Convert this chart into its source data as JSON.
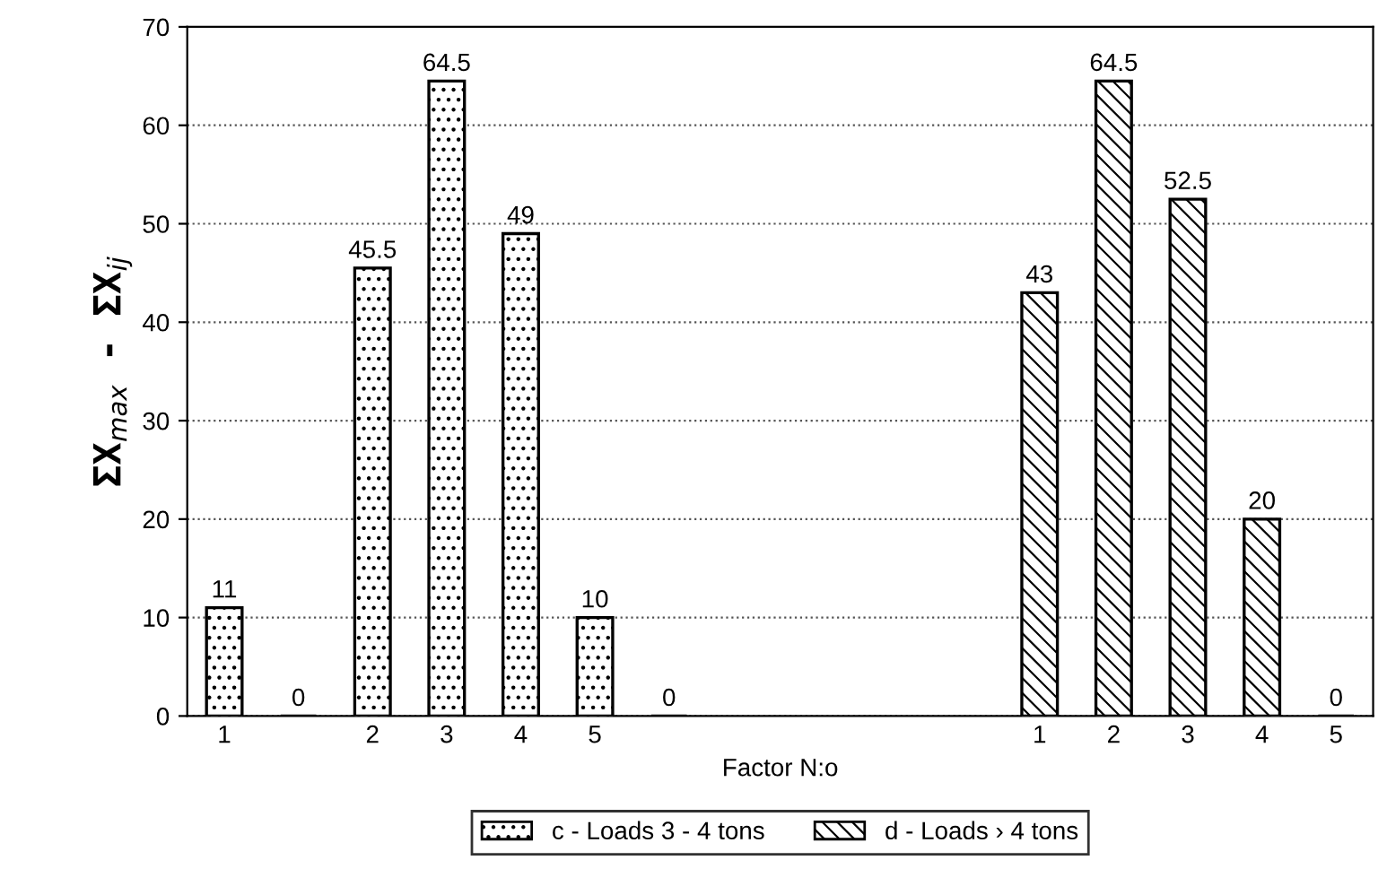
{
  "chart_data": {
    "type": "bar",
    "xlabel": "Factor N:o",
    "ylabel": "ΣX$_{max}$ - ΣX$_{ij}$",
    "categories": [
      "1",
      null,
      "2",
      "3",
      "4",
      "5",
      null,
      null,
      null,
      null,
      null,
      "1",
      "2",
      "3",
      "4",
      "5"
    ],
    "series": [
      {
        "name": "c - Loads 3 - 4 tons",
        "color": "#000000",
        "values": [
          11,
          0,
          45.5,
          64.5,
          49,
          10,
          0,
          null,
          null,
          null,
          null,
          null,
          null,
          null,
          null,
          null
        ]
      },
      {
        "name": "d - Loads › 4 tons",
        "color": "#000000",
        "values": [
          null,
          null,
          null,
          null,
          null,
          null,
          null,
          null,
          null,
          null,
          null,
          43,
          64.5,
          52.5,
          20,
          0
        ]
      }
    ],
    "ylim": [
      0,
      70
    ],
    "yticks": [
      0,
      10,
      20,
      30,
      40,
      50,
      60,
      70
    ],
    "grid": "y",
    "legend": "bottom",
    "data_labels": true
  }
}
